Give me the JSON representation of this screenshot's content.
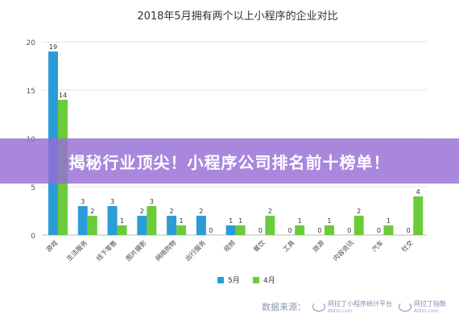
{
  "chart_data": {
    "type": "bar",
    "title": "2018年5月拥有两个以上小程序的企业对比",
    "categories": [
      "游戏",
      "生活服务",
      "线下零售",
      "图片摄影",
      "网络购物",
      "出行服务",
      "视频",
      "餐饮",
      "工具",
      "旅游",
      "内容资讯",
      "汽车",
      "社交"
    ],
    "series": [
      {
        "name": "5月",
        "color": "#2b9cd8",
        "values": [
          19,
          3,
          3,
          2,
          2,
          2,
          1,
          0,
          0,
          0,
          0,
          0,
          0
        ]
      },
      {
        "name": "4月",
        "color": "#6ccb3a",
        "values": [
          14,
          2,
          1,
          3,
          1,
          0,
          1,
          2,
          1,
          1,
          2,
          1,
          4
        ]
      }
    ],
    "yticks": [
      0,
      5,
      10,
      15,
      20
    ],
    "ylim": [
      0,
      20
    ],
    "grid": true,
    "legend": "bottom"
  },
  "banner": {
    "text": "揭秘行业顶尖！小程序公司排名前十榜单！"
  },
  "footer": {
    "source_label": "数据来源：",
    "logo1_name": "阿拉丁小程序统计平台",
    "logo1_url": "Aldzs.com",
    "logo2_name": "阿拉丁指数",
    "logo2_url": "Aldzs.com"
  }
}
